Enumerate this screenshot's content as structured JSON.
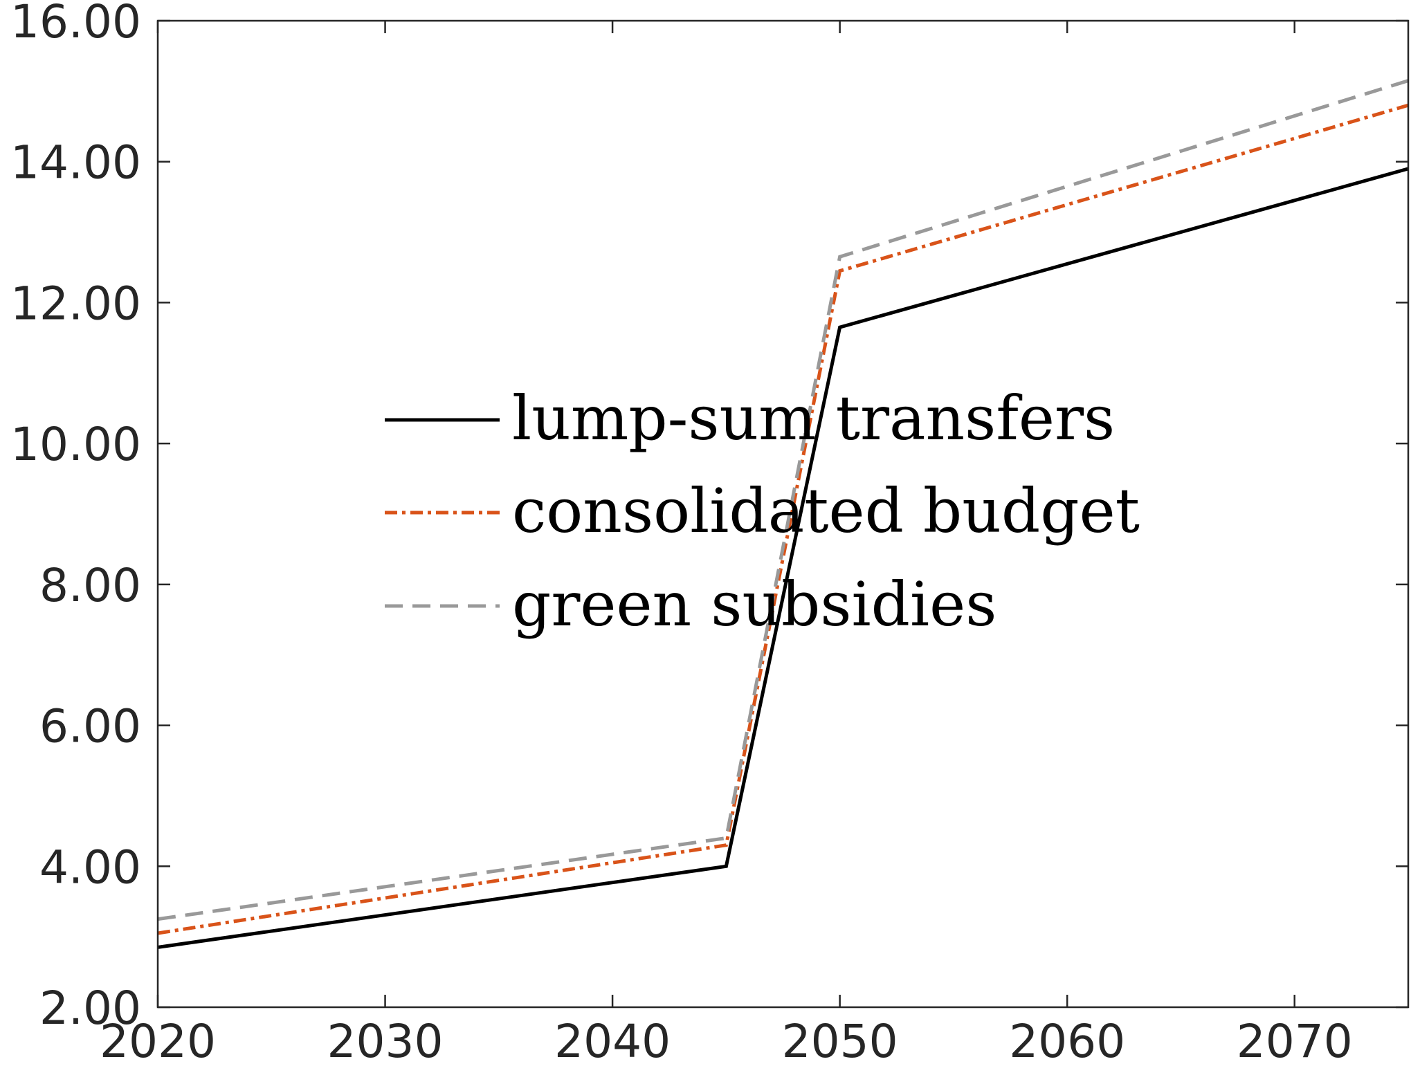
{
  "chart_data": {
    "type": "line",
    "title": "",
    "xlabel": "",
    "ylabel": "",
    "xlim": [
      2020,
      2075
    ],
    "ylim": [
      2,
      16
    ],
    "x_ticks": [
      2020,
      2030,
      2040,
      2050,
      2060,
      2070
    ],
    "x_tick_labels": [
      "2020",
      "2030",
      "2040",
      "2050",
      "2060",
      "2070"
    ],
    "y_ticks": [
      2,
      4,
      6,
      8,
      10,
      12,
      14,
      16
    ],
    "y_tick_labels": [
      "2.00",
      "4.00",
      "6.00",
      "8.00",
      "10.00",
      "12.00",
      "14.00",
      "16.00"
    ],
    "grid": false,
    "legend_position": "center",
    "x": [
      2020,
      2045,
      2050,
      2075
    ],
    "series": [
      {
        "name": "lump-sum transfers",
        "values": [
          2.85,
          4.0,
          11.65,
          13.9
        ],
        "color": "#000000",
        "line_style": "solid"
      },
      {
        "name": "consolidated budget",
        "values": [
          3.05,
          4.3,
          12.45,
          14.8
        ],
        "color": "#D95319",
        "line_style": "dash-dot"
      },
      {
        "name": "green subsidies",
        "values": [
          3.25,
          4.4,
          12.65,
          15.15
        ],
        "color": "#999999",
        "line_style": "dashed"
      }
    ]
  }
}
